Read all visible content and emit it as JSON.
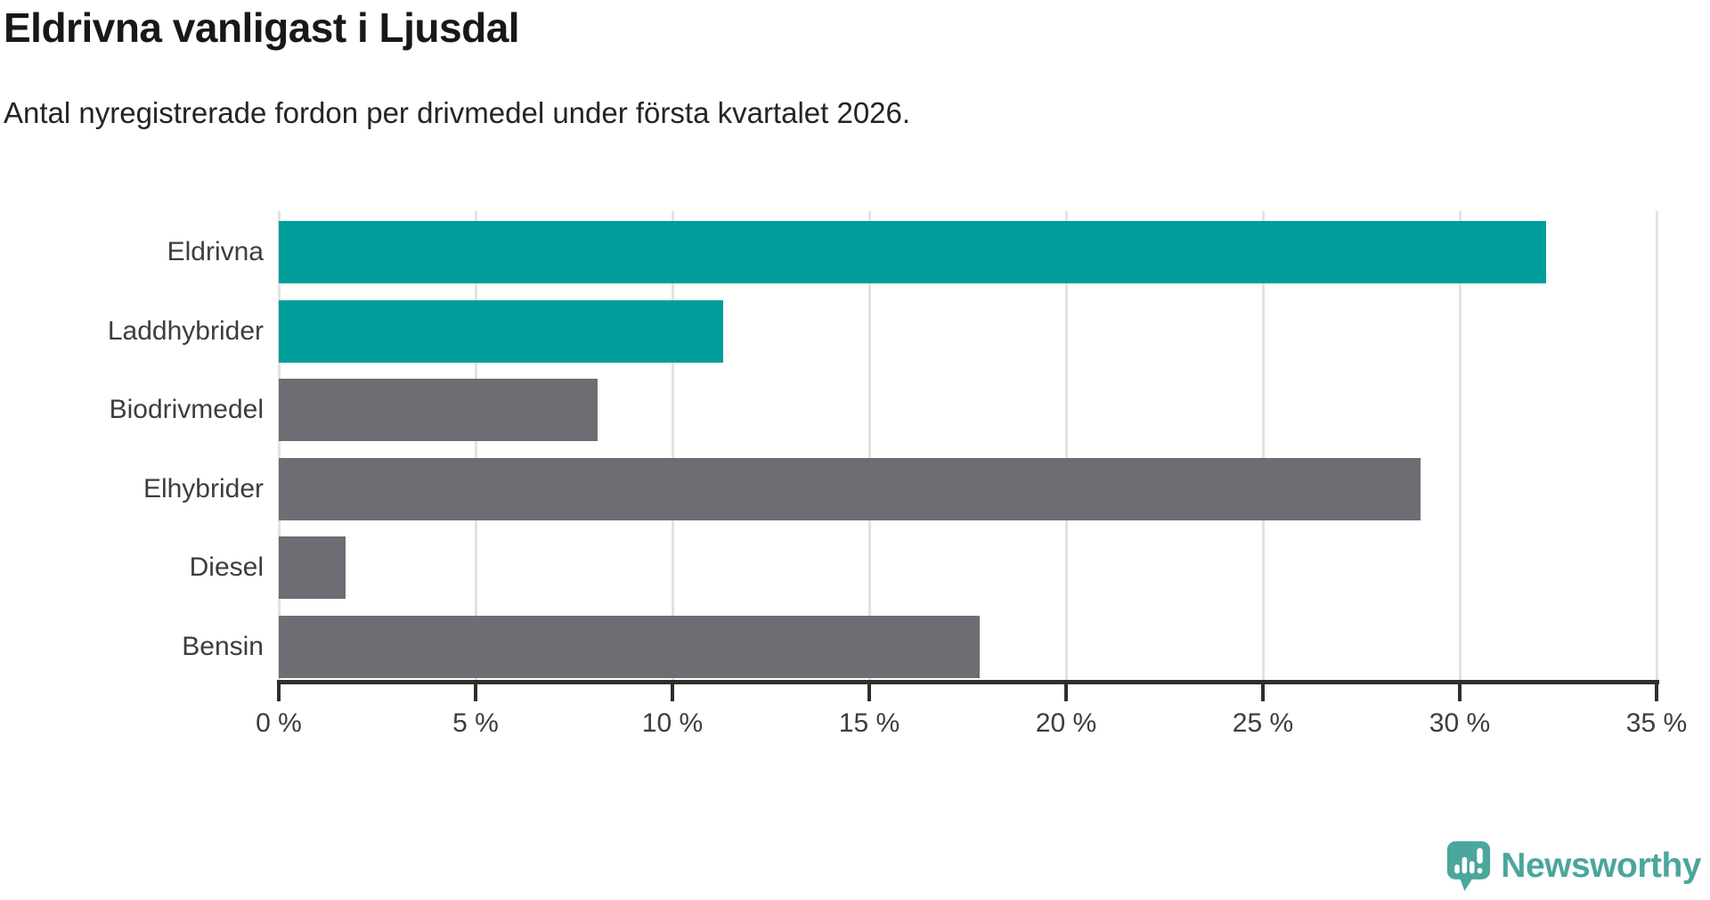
{
  "header": {
    "title": "Eldrivna vanligast i Ljusdal",
    "subtitle": "Antal nyregistrerade fordon per drivmedel under första kvartalet 2026."
  },
  "chart_data": {
    "type": "bar",
    "orientation": "horizontal",
    "title": "Eldrivna vanligast i Ljusdal",
    "subtitle": "Antal nyregistrerade fordon per drivmedel under första kvartalet 2026.",
    "categories": [
      "Eldrivna",
      "Laddhybrider",
      "Biodrivmedel",
      "Elhybrider",
      "Diesel",
      "Bensin"
    ],
    "values": [
      32.2,
      11.3,
      8.1,
      29.0,
      1.7,
      17.8
    ],
    "unit": "%",
    "xlim": [
      0,
      35
    ],
    "tick_step": 5,
    "tick_labels": [
      "0 %",
      "5 %",
      "10 %",
      "15 %",
      "20 %",
      "25 %",
      "30 %",
      "35 %"
    ],
    "grid": true,
    "legend": "none",
    "highlight_color": "#009e9b",
    "default_color": "#6e6d73",
    "bar_colors": [
      "#009e9b",
      "#009e9b",
      "#6e6d73",
      "#6e6d73",
      "#6e6d73",
      "#6e6d73"
    ]
  },
  "colors": {
    "background": "#ffffff",
    "title_text": "#181818",
    "axis_text": "#3d3d3d",
    "axis_line": "#2e2e2e",
    "gridline": "#e2e2e2",
    "logo_teal": "#4ba69b"
  },
  "branding": {
    "logo_text": "Newsworthy",
    "logo_icon": "speech-bubble-bar-chart-exclamation"
  }
}
